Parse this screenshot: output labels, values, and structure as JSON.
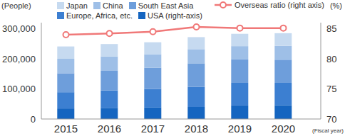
{
  "chart_data": {
    "type": "bar",
    "stacked": true,
    "grid": false,
    "categories": [
      "2015",
      "2016",
      "2017",
      "2018",
      "2019",
      "2020"
    ],
    "x_label": "(Fiscal year)",
    "y_label": "(People)",
    "y2_label": "(%)",
    "ylim": [
      0,
      320000
    ],
    "yticks": [
      0,
      {
        "value": 100000,
        "label": "100,000"
      },
      {
        "value": 200000,
        "label": "200,000"
      },
      {
        "value": 300000,
        "label": "300,000"
      }
    ],
    "y2lim": [
      70,
      86
    ],
    "y2ticks": [
      70,
      75,
      80,
      85
    ],
    "series": [
      {
        "name": "Japan",
        "color": "#c6daf0",
        "values": [
          41000,
          41000,
          40000,
          40000,
          41000,
          42000
        ]
      },
      {
        "name": "China",
        "color": "#9ebfe7",
        "values": [
          48000,
          48000,
          45000,
          47000,
          44000,
          46000
        ]
      },
      {
        "name": "South East Asia",
        "color": "#6e9edb",
        "values": [
          63000,
          65000,
          70000,
          78000,
          78000,
          77000
        ]
      },
      {
        "name": "Europe, Africa, etc.",
        "color": "#3c7fd1",
        "values": [
          54000,
          58000,
          62000,
          67000,
          75000,
          74000
        ]
      },
      {
        "name": "USA (right-axis)",
        "color": "#1565c0",
        "values": [
          35000,
          37000,
          38000,
          40000,
          45000,
          46000
        ]
      },
      {
        "name": "Overseas ratio (right axis)",
        "type": "line",
        "axis": "y2",
        "color": "#f07878",
        "marker": "circle",
        "values": [
          84.0,
          84.2,
          84.5,
          85.3,
          85.1,
          85.1
        ]
      }
    ]
  }
}
